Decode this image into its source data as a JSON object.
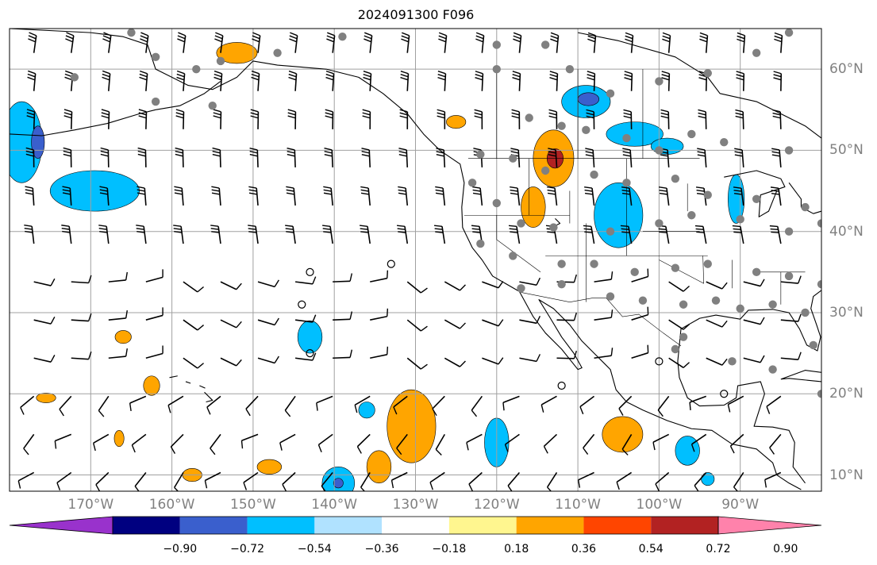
{
  "title": "2024091300 F096",
  "map": {
    "projection": "Plate Carree",
    "extent": {
      "lon": [
        -180,
        -80
      ],
      "lat": [
        8,
        65
      ]
    },
    "background_color": "#ffffff",
    "gridline_color": "#a0a0a0",
    "coastline_color": "#000000",
    "station_marker_color": "#808080",
    "wind_barb_color": "#000000",
    "lon_ticks": [
      {
        "value": -170,
        "label": "170°W"
      },
      {
        "value": -160,
        "label": "160°W"
      },
      {
        "value": -150,
        "label": "150°W"
      },
      {
        "value": -140,
        "label": "140°W"
      },
      {
        "value": -130,
        "label": "130°W"
      },
      {
        "value": -120,
        "label": "120°W"
      },
      {
        "value": -110,
        "label": "110°W"
      },
      {
        "value": -100,
        "label": "100°W"
      },
      {
        "value": -90,
        "label": "90°W"
      }
    ],
    "lat_ticks": [
      {
        "value": 60,
        "label": "60°N"
      },
      {
        "value": 50,
        "label": "50°N"
      },
      {
        "value": 40,
        "label": "40°N"
      },
      {
        "value": 30,
        "label": "30°N"
      },
      {
        "value": 20,
        "label": "20°N"
      },
      {
        "value": 10,
        "label": "10°N"
      }
    ],
    "shaded_anomalies": [
      {
        "name": "Alaska north coast",
        "lon": -152,
        "lat": 62,
        "rx": 2.5,
        "ry": 1.3,
        "value": 0.45
      },
      {
        "name": "Bering West",
        "lon": -178.5,
        "lat": 51,
        "rx": 2.5,
        "ry": 5,
        "value": -0.5
      },
      {
        "name": "Bering West core",
        "lon": -176.5,
        "lat": 51,
        "rx": 0.8,
        "ry": 2,
        "value": -0.65
      },
      {
        "name": "Aleutian south",
        "lon": -169.5,
        "lat": 45,
        "rx": 5.5,
        "ry": 2.5,
        "value": -0.45
      },
      {
        "name": "Saskatchewan",
        "lon": -109,
        "lat": 56,
        "rx": 3,
        "ry": 2,
        "value": -0.45
      },
      {
        "name": "Saskatchewan core",
        "lon": -108.7,
        "lat": 56.3,
        "rx": 1.3,
        "ry": 0.8,
        "value": -0.65
      },
      {
        "name": "Manitoba",
        "lon": -103,
        "lat": 52,
        "rx": 3.5,
        "ry": 1.5,
        "value": -0.4
      },
      {
        "name": "Manitoba 2",
        "lon": -99,
        "lat": 50.5,
        "rx": 2,
        "ry": 1,
        "value": -0.4
      },
      {
        "name": "Montana positive",
        "lon": -113,
        "lat": 49,
        "rx": 2.5,
        "ry": 3.5,
        "value": 0.5
      },
      {
        "name": "Montana core",
        "lon": -112.8,
        "lat": 49,
        "rx": 1,
        "ry": 1.2,
        "value": 0.8
      },
      {
        "name": "BC positive",
        "lon": -125,
        "lat": 53.5,
        "rx": 1.2,
        "ry": 0.8,
        "value": 0.4
      },
      {
        "name": "Nevada positive",
        "lon": -115.5,
        "lat": 43,
        "rx": 1.5,
        "ry": 2.5,
        "value": 0.4
      },
      {
        "name": "Colorado negative",
        "lon": -105,
        "lat": 42,
        "rx": 3,
        "ry": 4,
        "value": -0.45
      },
      {
        "name": "Wisconsin negative",
        "lon": -90.5,
        "lat": 44,
        "rx": 1,
        "ry": 3,
        "value": -0.4
      },
      {
        "name": "Hawaii NE",
        "lon": -143,
        "lat": 27,
        "rx": 1.5,
        "ry": 2,
        "value": -0.45
      },
      {
        "name": "Tropical positive",
        "lon": -130.5,
        "lat": 16,
        "rx": 3,
        "ry": 4.5,
        "value": 0.45
      },
      {
        "name": "Tropical south pos",
        "lon": -134.5,
        "lat": 11,
        "rx": 1.5,
        "ry": 2,
        "value": 0.4
      },
      {
        "name": "Tropical negative A",
        "lon": -139.5,
        "lat": 9,
        "rx": 2,
        "ry": 2,
        "value": -0.45
      },
      {
        "name": "Tropical negative A core",
        "lon": -139.5,
        "lat": 9,
        "rx": 0.6,
        "ry": 0.6,
        "value": -0.65
      },
      {
        "name": "Tropical negative B",
        "lon": -120,
        "lat": 14,
        "rx": 1.5,
        "ry": 3,
        "value": -0.45
      },
      {
        "name": "Mexico pacific positive",
        "lon": -104.5,
        "lat": 15,
        "rx": 2.5,
        "ry": 2.2,
        "value": 0.45
      },
      {
        "name": "Central America neg",
        "lon": -96.5,
        "lat": 13,
        "rx": 1.5,
        "ry": 1.8,
        "value": -0.45
      },
      {
        "name": "Pacific pos small 1",
        "lon": -166,
        "lat": 27,
        "rx": 1,
        "ry": 0.8,
        "value": 0.4
      },
      {
        "name": "Pacific pos small 2",
        "lon": -162.5,
        "lat": 21,
        "rx": 1,
        "ry": 1.2,
        "value": 0.4
      },
      {
        "name": "Pacific pos small 3",
        "lon": -166.5,
        "lat": 14.5,
        "rx": 0.6,
        "ry": 1,
        "value": 0.4
      },
      {
        "name": "Pacific pos small 4",
        "lon": -157.5,
        "lat": 10,
        "rx": 1.2,
        "ry": 0.8,
        "value": 0.4
      },
      {
        "name": "Pacific pos small 5",
        "lon": -148,
        "lat": 11,
        "rx": 1.5,
        "ry": 0.9,
        "value": 0.4
      },
      {
        "name": "Pacific pos small 6",
        "lon": -175.5,
        "lat": 19.5,
        "rx": 1.2,
        "ry": 0.6,
        "value": 0.4
      },
      {
        "name": "Pacific neg small 1",
        "lon": -136,
        "lat": 18,
        "rx": 1,
        "ry": 1,
        "value": -0.4
      },
      {
        "name": "Atlantic neg small",
        "lon": -94,
        "lat": 9.5,
        "rx": 0.8,
        "ry": 0.8,
        "value": -0.4
      }
    ],
    "colorbar": {
      "colors": [
        "#9932cc",
        "#000080",
        "#3a5fcd",
        "#00bfff",
        "#b0e2ff",
        "#ffffff",
        "#fff68f",
        "#ffa500",
        "#ff4500",
        "#b22222",
        "#ff82ab"
      ],
      "ticks": [
        -0.9,
        -0.72,
        -0.54,
        -0.36,
        -0.18,
        0.18,
        0.36,
        0.54,
        0.72,
        0.9
      ],
      "tick_labels": [
        "−0.90",
        "−0.72",
        "−0.54",
        "−0.36",
        "−0.18",
        "0.18",
        "0.36",
        "0.54",
        "0.72",
        "0.90"
      ],
      "extend": "both"
    }
  }
}
